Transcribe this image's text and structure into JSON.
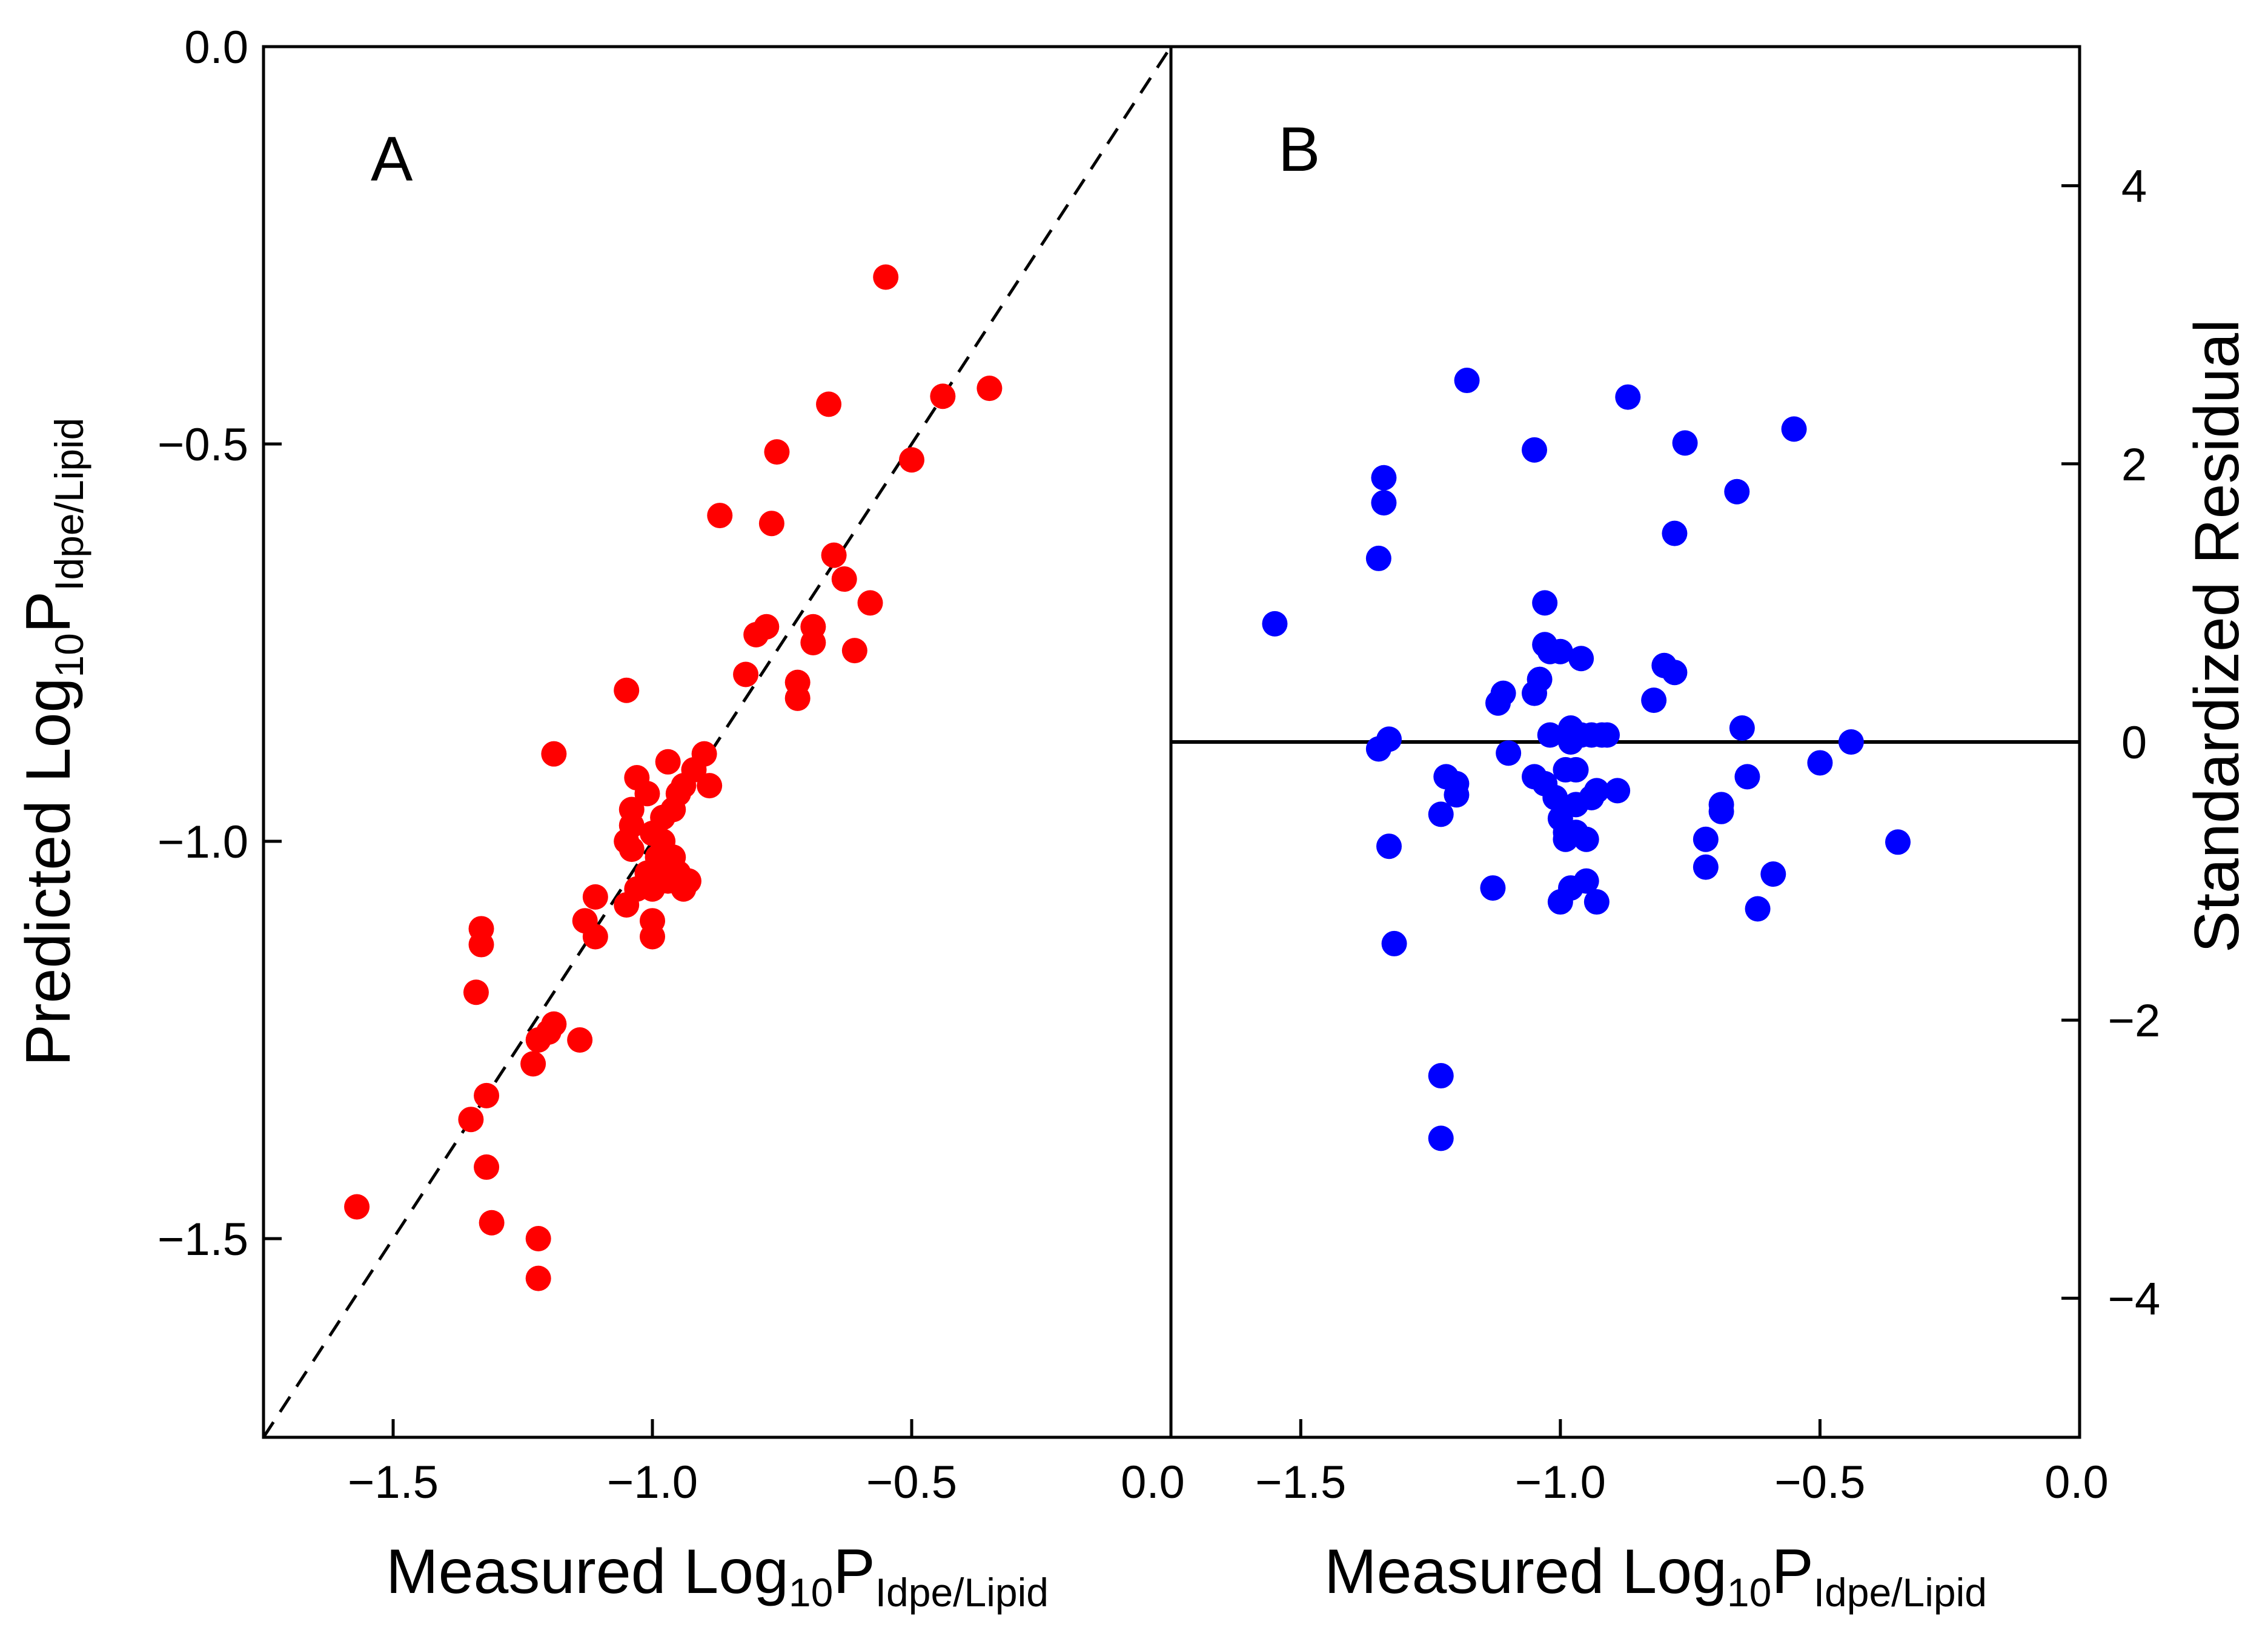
{
  "chart_data": [
    {
      "type": "scatter",
      "panel_label": "A",
      "xlabel": "Measured Log10PIdpe/Lipid",
      "xlabel_parts": {
        "main": "Measured Log",
        "sub1": "10",
        "mid": "P",
        "sub2": "Idpe/Lipid"
      },
      "ylabel": "Predicted Log10PIdpe/Lipid",
      "ylabel_parts": {
        "main": "Predicted Log",
        "sub1": "10",
        "mid": "P",
        "sub2": "Idpe/Lipid"
      },
      "xlim": [
        -1.75,
        0.0
      ],
      "ylim": [
        -1.75,
        0.0
      ],
      "xticks": [
        -1.5,
        -1.0,
        -0.5,
        0.0
      ],
      "xtick_labels": [
        "−1.5",
        "−1.0",
        "−0.5",
        "0.0"
      ],
      "yticks": [
        -1.5,
        -1.0,
        -0.5,
        0.0
      ],
      "ytick_labels": [
        "−1.5",
        "−1.0",
        "−0.5",
        "0.0"
      ],
      "marker_color": "#ff0000",
      "reference_line": {
        "style": "dashed",
        "slope": 1,
        "intercept": 0,
        "color": "#000000"
      },
      "points": [
        {
          "x": -1.57,
          "y": -1.46
        },
        {
          "x": -1.35,
          "y": -1.35
        },
        {
          "x": -1.34,
          "y": -1.19
        },
        {
          "x": -1.33,
          "y": -1.11
        },
        {
          "x": -1.33,
          "y": -1.13
        },
        {
          "x": -1.32,
          "y": -1.32
        },
        {
          "x": -1.32,
          "y": -1.41
        },
        {
          "x": -1.31,
          "y": -1.48
        },
        {
          "x": -1.23,
          "y": -1.28
        },
        {
          "x": -1.22,
          "y": -1.25
        },
        {
          "x": -1.22,
          "y": -1.5
        },
        {
          "x": -1.22,
          "y": -1.55
        },
        {
          "x": -1.2,
          "y": -1.24
        },
        {
          "x": -1.19,
          "y": -1.23
        },
        {
          "x": -1.19,
          "y": -0.89
        },
        {
          "x": -1.14,
          "y": -1.25
        },
        {
          "x": -1.13,
          "y": -1.1
        },
        {
          "x": -1.11,
          "y": -1.12
        },
        {
          "x": -1.11,
          "y": -1.07
        },
        {
          "x": -1.05,
          "y": -0.81
        },
        {
          "x": -1.05,
          "y": -1.0
        },
        {
          "x": -1.05,
          "y": -1.08
        },
        {
          "x": -1.04,
          "y": -0.98
        },
        {
          "x": -1.04,
          "y": -1.01
        },
        {
          "x": -1.04,
          "y": -0.96
        },
        {
          "x": -1.03,
          "y": -0.92
        },
        {
          "x": -1.03,
          "y": -1.06
        },
        {
          "x": -1.01,
          "y": -0.94
        },
        {
          "x": -1.01,
          "y": -1.04
        },
        {
          "x": -1.0,
          "y": -0.99
        },
        {
          "x": -1.0,
          "y": -1.06
        },
        {
          "x": -1.0,
          "y": -1.1
        },
        {
          "x": -1.0,
          "y": -1.12
        },
        {
          "x": -0.99,
          "y": -1.02
        },
        {
          "x": -0.98,
          "y": -0.97
        },
        {
          "x": -0.98,
          "y": -1.0
        },
        {
          "x": -0.97,
          "y": -0.9
        },
        {
          "x": -0.97,
          "y": -1.03
        },
        {
          "x": -0.97,
          "y": -1.05
        },
        {
          "x": -0.96,
          "y": -0.96
        },
        {
          "x": -0.96,
          "y": -1.02
        },
        {
          "x": -0.95,
          "y": -0.94
        },
        {
          "x": -0.95,
          "y": -1.04
        },
        {
          "x": -0.94,
          "y": -0.93
        },
        {
          "x": -0.94,
          "y": -1.06
        },
        {
          "x": -0.93,
          "y": -1.05
        },
        {
          "x": -0.92,
          "y": -0.91
        },
        {
          "x": -0.9,
          "y": -0.89
        },
        {
          "x": -0.89,
          "y": -0.93
        },
        {
          "x": -0.87,
          "y": -0.59
        },
        {
          "x": -0.82,
          "y": -0.79
        },
        {
          "x": -0.8,
          "y": -0.74
        },
        {
          "x": -0.78,
          "y": -0.73
        },
        {
          "x": -0.77,
          "y": -0.6
        },
        {
          "x": -0.76,
          "y": -0.51
        },
        {
          "x": -0.72,
          "y": -0.8
        },
        {
          "x": -0.72,
          "y": -0.82
        },
        {
          "x": -0.69,
          "y": -0.73
        },
        {
          "x": -0.69,
          "y": -0.75
        },
        {
          "x": -0.66,
          "y": -0.45
        },
        {
          "x": -0.65,
          "y": -0.64
        },
        {
          "x": -0.63,
          "y": -0.67
        },
        {
          "x": -0.61,
          "y": -0.76
        },
        {
          "x": -0.58,
          "y": -0.7
        },
        {
          "x": -0.55,
          "y": -0.29
        },
        {
          "x": -0.5,
          "y": -0.52
        },
        {
          "x": -0.44,
          "y": -0.44
        },
        {
          "x": -0.35,
          "y": -0.43
        }
      ]
    },
    {
      "type": "scatter",
      "panel_label": "B",
      "xlabel": "Measured Log10PIdpe/Lipid",
      "xlabel_parts": {
        "main": "Measured Log",
        "sub1": "10",
        "mid": "P",
        "sub2": "Idpe/Lipid"
      },
      "ylabel": "Standardized Residual",
      "xlim": [
        -1.75,
        0.0
      ],
      "ylim": [
        -5.0,
        5.0
      ],
      "xticks": [
        -1.5,
        -1.0,
        -0.5,
        0.0
      ],
      "xtick_labels": [
        "−1.5",
        "−1.0",
        "−0.5",
        "0.0"
      ],
      "yticks": [
        -4,
        -2,
        0,
        2,
        4
      ],
      "ytick_labels": [
        "−4",
        "−2",
        "0",
        "2",
        "4"
      ],
      "marker_color": "#0000ff",
      "reference_line": {
        "style": "solid",
        "y": 0,
        "color": "#000000"
      },
      "points": [
        {
          "x": -1.55,
          "y": 0.85
        },
        {
          "x": -1.34,
          "y": 1.9
        },
        {
          "x": -1.34,
          "y": 1.72
        },
        {
          "x": -1.35,
          "y": 1.32
        },
        {
          "x": -1.35,
          "y": -0.05
        },
        {
          "x": -1.33,
          "y": 0.02
        },
        {
          "x": -1.33,
          "y": -0.75
        },
        {
          "x": -1.32,
          "y": -1.45
        },
        {
          "x": -1.23,
          "y": -2.4
        },
        {
          "x": -1.23,
          "y": -2.85
        },
        {
          "x": -1.23,
          "y": -0.52
        },
        {
          "x": -1.22,
          "y": -0.25
        },
        {
          "x": -1.2,
          "y": -0.3
        },
        {
          "x": -1.2,
          "y": -0.38
        },
        {
          "x": -1.18,
          "y": 2.6
        },
        {
          "x": -1.13,
          "y": -1.05
        },
        {
          "x": -1.12,
          "y": 0.28
        },
        {
          "x": -1.11,
          "y": 0.35
        },
        {
          "x": -1.1,
          "y": -0.08
        },
        {
          "x": -1.05,
          "y": 2.1
        },
        {
          "x": -1.05,
          "y": 0.35
        },
        {
          "x": -1.05,
          "y": -0.25
        },
        {
          "x": -1.04,
          "y": 0.45
        },
        {
          "x": -1.03,
          "y": 0.7
        },
        {
          "x": -1.03,
          "y": 1.0
        },
        {
          "x": -1.03,
          "y": -0.3
        },
        {
          "x": -1.02,
          "y": 0.65
        },
        {
          "x": -1.02,
          "y": 0.05
        },
        {
          "x": -1.01,
          "y": -0.4
        },
        {
          "x": -1.0,
          "y": -0.55
        },
        {
          "x": -1.0,
          "y": 0.65
        },
        {
          "x": -1.0,
          "y": -1.15
        },
        {
          "x": -0.99,
          "y": -0.65
        },
        {
          "x": -0.99,
          "y": -0.7
        },
        {
          "x": -0.99,
          "y": -0.2
        },
        {
          "x": -0.98,
          "y": -1.05
        },
        {
          "x": -0.98,
          "y": 0.0
        },
        {
          "x": -0.98,
          "y": 0.1
        },
        {
          "x": -0.97,
          "y": -0.2
        },
        {
          "x": -0.97,
          "y": -0.45
        },
        {
          "x": -0.97,
          "y": -0.65
        },
        {
          "x": -0.96,
          "y": 0.6
        },
        {
          "x": -0.96,
          "y": 0.05
        },
        {
          "x": -0.95,
          "y": -0.7
        },
        {
          "x": -0.95,
          "y": -1.0
        },
        {
          "x": -0.94,
          "y": -0.4
        },
        {
          "x": -0.94,
          "y": 0.05
        },
        {
          "x": -0.93,
          "y": -1.15
        },
        {
          "x": -0.93,
          "y": -0.35
        },
        {
          "x": -0.92,
          "y": 0.05
        },
        {
          "x": -0.91,
          "y": 0.05
        },
        {
          "x": -0.89,
          "y": -0.35
        },
        {
          "x": -0.87,
          "y": 2.48
        },
        {
          "x": -0.82,
          "y": 0.3
        },
        {
          "x": -0.8,
          "y": 0.55
        },
        {
          "x": -0.78,
          "y": 0.5
        },
        {
          "x": -0.78,
          "y": 1.5
        },
        {
          "x": -0.76,
          "y": 2.15
        },
        {
          "x": -0.72,
          "y": -0.7
        },
        {
          "x": -0.72,
          "y": -0.9
        },
        {
          "x": -0.69,
          "y": -0.45
        },
        {
          "x": -0.69,
          "y": -0.5
        },
        {
          "x": -0.66,
          "y": 1.8
        },
        {
          "x": -0.65,
          "y": 0.1
        },
        {
          "x": -0.64,
          "y": -0.25
        },
        {
          "x": -0.62,
          "y": -1.2
        },
        {
          "x": -0.59,
          "y": -0.95
        },
        {
          "x": -0.55,
          "y": 2.25
        },
        {
          "x": -0.5,
          "y": -0.15
        },
        {
          "x": -0.44,
          "y": 0.0
        },
        {
          "x": -0.35,
          "y": -0.72
        }
      ]
    }
  ]
}
